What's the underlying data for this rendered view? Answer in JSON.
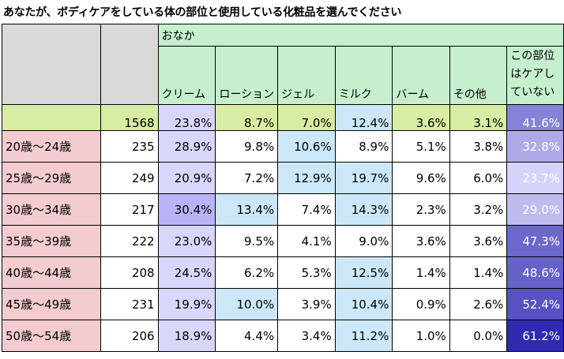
{
  "title": "あなたが、ボディケアをしている体の部位と使用している化粧品を選んでください",
  "group_header": "おなか",
  "colors": {
    "header_green": "#c6efce",
    "total_row": "#d8eca3",
    "age_label": "#f2ccd0",
    "blank_header": "#d9d9d9",
    "heat_low": "#ffffff",
    "heat_blue_light": "#cce8f8",
    "heat_purple_light": "#d9d6fb",
    "heat_high": "#2c25b0"
  },
  "chart_data": {
    "type": "table",
    "columns": [
      "クリーム",
      "ローション",
      "ジェル",
      "ミルク",
      "バーム",
      "その他",
      "この部位はケアしていない"
    ],
    "rows": [
      {
        "label": "",
        "n": "1568",
        "values": [
          "23.8%",
          "8.7%",
          "7.0%",
          "12.4%",
          "3.6%",
          "3.1%",
          "41.6%"
        ]
      },
      {
        "label": "20歳～24歳",
        "n": "235",
        "values": [
          "28.9%",
          "9.8%",
          "10.6%",
          "8.9%",
          "5.1%",
          "3.8%",
          "32.8%"
        ]
      },
      {
        "label": "25歳～29歳",
        "n": "249",
        "values": [
          "20.9%",
          "7.2%",
          "12.9%",
          "19.7%",
          "9.6%",
          "6.0%",
          "23.7%"
        ]
      },
      {
        "label": "30歳～34歳",
        "n": "217",
        "values": [
          "30.4%",
          "13.4%",
          "7.4%",
          "14.3%",
          "2.3%",
          "3.2%",
          "29.0%"
        ]
      },
      {
        "label": "35歳～39歳",
        "n": "222",
        "values": [
          "23.0%",
          "9.5%",
          "4.1%",
          "9.0%",
          "3.6%",
          "3.6%",
          "47.3%"
        ]
      },
      {
        "label": "40歳～44歳",
        "n": "208",
        "values": [
          "24.5%",
          "6.2%",
          "5.3%",
          "12.5%",
          "1.4%",
          "1.4%",
          "48.6%"
        ]
      },
      {
        "label": "45歳～49歳",
        "n": "231",
        "values": [
          "19.9%",
          "10.0%",
          "3.9%",
          "10.4%",
          "0.9%",
          "2.6%",
          "52.4%"
        ]
      },
      {
        "label": "50歳～54歳",
        "n": "206",
        "values": [
          "18.9%",
          "4.4%",
          "3.4%",
          "11.2%",
          "1.0%",
          "0.0%",
          "61.2%"
        ]
      }
    ]
  }
}
